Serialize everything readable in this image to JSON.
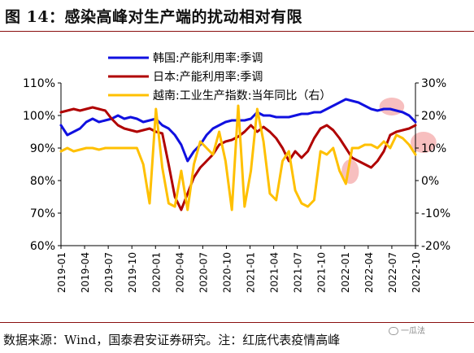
{
  "header": {
    "title": "图 14：感染高峰对生产端的扰动相对有限"
  },
  "footer": {
    "source": "数据来源：Wind，国泰君安证券研究。注：红底代表疫情高峰"
  },
  "watermark": {
    "text": "一瓜法"
  },
  "colors": {
    "korea": "#1010e0",
    "japan": "#b00000",
    "vietnam": "#ffc000",
    "highlight": "#f4aaaa",
    "rule": "#8a0f0f"
  },
  "chart_data": {
    "type": "line",
    "x_labels": [
      "2019-01",
      "2019-04",
      "2019-07",
      "2019-10",
      "2020-01",
      "2020-04",
      "2020-07",
      "2020-10",
      "2021-01",
      "2021-04",
      "2021-07",
      "2021-10",
      "2022-01",
      "2022-04",
      "2022-07",
      "2022-10"
    ],
    "y_left": {
      "min": 60,
      "max": 110,
      "ticks": [
        "60%",
        "70%",
        "80%",
        "90%",
        "100%",
        "110%"
      ]
    },
    "y_right": {
      "min": -20,
      "max": 30,
      "ticks": [
        "-20%",
        "-10%",
        "0%",
        "10%",
        "20%",
        "30%"
      ]
    },
    "grid": false,
    "legend_position": "top",
    "series": [
      {
        "name": "韩国:产能利用率:季调",
        "axis": "left",
        "color_key": "korea",
        "values": [
          97,
          94,
          95,
          96,
          98,
          99,
          98,
          98.5,
          99,
          100,
          99,
          99.5,
          99,
          98,
          98.5,
          99,
          97,
          96,
          94,
          91,
          86,
          89,
          91,
          94,
          96,
          97,
          98,
          98.5,
          98.5,
          98.5,
          99,
          101,
          100,
          100,
          99.5,
          99.5,
          99.5,
          100,
          100.5,
          100.5,
          101,
          101,
          102,
          103,
          104,
          105,
          104.5,
          104,
          103,
          102,
          101.5,
          102,
          102,
          101.5,
          101,
          100,
          98
        ]
      },
      {
        "name": "日本:产能利用率:季调",
        "axis": "left",
        "color_key": "japan",
        "values": [
          101,
          101.5,
          102,
          101.5,
          102,
          102.5,
          102,
          101.5,
          99,
          97,
          96,
          95.5,
          95,
          95.5,
          96,
          95,
          94.5,
          85,
          75,
          71,
          76,
          81,
          84,
          86,
          88,
          91,
          92,
          92.5,
          93.5,
          95,
          97,
          95,
          96.5,
          95,
          93,
          90,
          86,
          89,
          87,
          89,
          93,
          96,
          97,
          95.5,
          93,
          90,
          87,
          86,
          85,
          84,
          86,
          89,
          94,
          95,
          95.5,
          96,
          97
        ]
      },
      {
        "name": "越南:工业生产指数:当年同比（右）",
        "axis": "right",
        "color_key": "vietnam",
        "values": [
          9,
          10,
          9,
          9.5,
          10,
          10,
          9.5,
          10,
          10,
          10,
          10,
          10,
          10,
          5,
          -7,
          22,
          4,
          -7,
          -8,
          3,
          -9,
          5,
          12,
          10,
          8,
          15,
          6,
          -9,
          23,
          -8,
          3,
          22,
          12,
          -4,
          -6,
          6,
          9,
          -3,
          -7,
          -8,
          -6,
          9,
          8,
          10,
          3,
          -1,
          10,
          10,
          11,
          11,
          10,
          12,
          10,
          14,
          13,
          11,
          8
        ]
      }
    ],
    "highlight_regions": [
      {
        "x_start": 2022.42,
        "x_end": 2022.58,
        "axis": "left",
        "y_low": 101,
        "y_high": 104.5
      },
      {
        "x_start": 2022.02,
        "x_end": 2022.1,
        "axis": "right",
        "y_low": 0,
        "y_high": 5.5
      },
      {
        "x_start": 2022.75,
        "x_end": 2022.92,
        "axis": "right",
        "y_low": 9.5,
        "y_high": 14
      }
    ]
  }
}
